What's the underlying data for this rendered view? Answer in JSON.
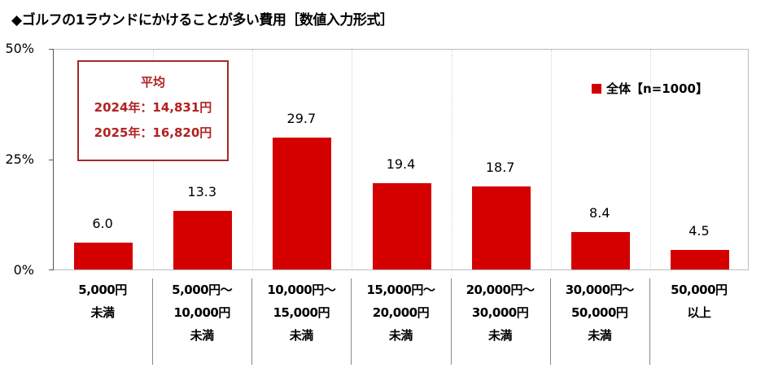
{
  "title": "◆ゴルフの1ラウンドにかけることが多い費用［数値入力形式］",
  "legend": {
    "label": "全体【n=1000】",
    "color": "#d40000"
  },
  "average_box": {
    "heading": "平均",
    "line_2024": "2024年：14,831円",
    "line_2025": "2025年：16,820円",
    "color": "#b22222"
  },
  "yaxis": {
    "ticks": [
      "50%",
      "25%",
      "0%"
    ]
  },
  "categories": [
    "5,000円\n未満",
    "5,000円～\n10,000円\n未満",
    "10,000円～\n15,000円\n未満",
    "15,000円～\n20,000円\n未満",
    "20,000円～\n30,000円\n未満",
    "30,000円～\n50,000円\n未満",
    "50,000円\n以上"
  ],
  "value_labels": [
    "6.0",
    "13.3",
    "29.7",
    "19.4",
    "18.7",
    "8.4",
    "4.5"
  ],
  "chart_data": {
    "type": "bar",
    "title": "◆ゴルフの1ラウンドにかけることが多い費用［数値入力形式］",
    "categories": [
      "5,000円未満",
      "5,000円～10,000円未満",
      "10,000円～15,000円未満",
      "15,000円～20,000円未満",
      "20,000円～30,000円未満",
      "30,000円～50,000円未満",
      "50,000円以上"
    ],
    "series": [
      {
        "name": "全体【n=1000】",
        "values": [
          6.0,
          13.3,
          29.7,
          19.4,
          18.7,
          8.4,
          4.5
        ],
        "color": "#d40000"
      }
    ],
    "xlabel": "",
    "ylabel": "",
    "ylim": [
      0,
      50
    ],
    "yticks": [
      "0%",
      "25%",
      "50%"
    ],
    "grid": "vertical dotted between categories",
    "legend_position": "upper right inside plot",
    "annotations": [
      "平均",
      "2024年：14,831円",
      "2025年：16,820円"
    ]
  }
}
